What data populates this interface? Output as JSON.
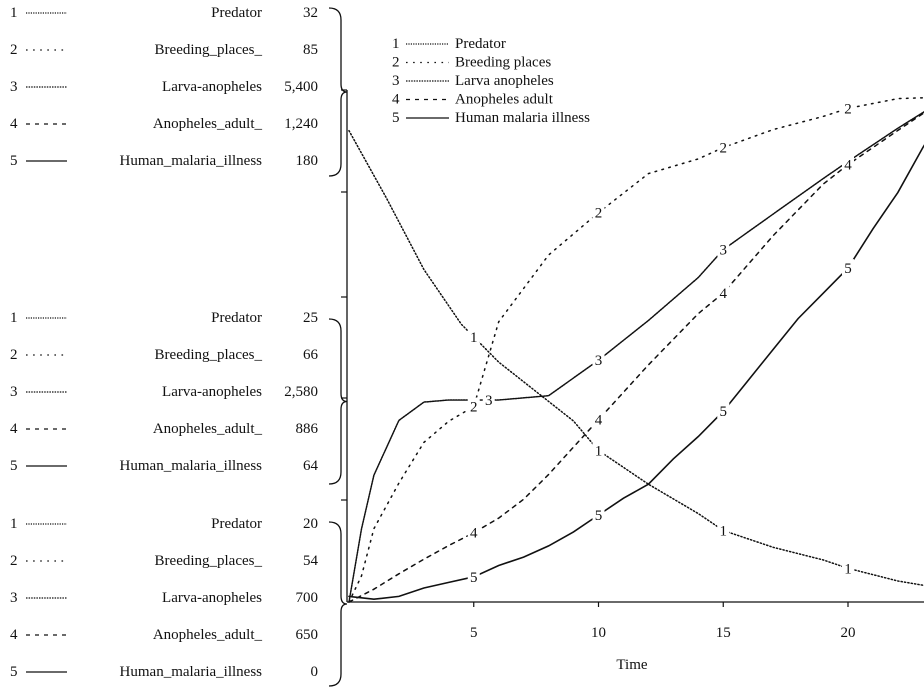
{
  "chart_data": {
    "type": "line",
    "xlabel": "Time",
    "x_ticks": [
      5,
      10,
      15,
      20
    ],
    "xlim": [
      0,
      24
    ],
    "legend": {
      "placement": "top-center",
      "entries": [
        {
          "num": "1",
          "name": "Predator"
        },
        {
          "num": "2",
          "name": "Breeding places"
        },
        {
          "num": "3",
          "name": "Larva anopheles"
        },
        {
          "num": "4",
          "name": "Anopheles adult"
        },
        {
          "num": "5",
          "name": "Human malaria illness"
        }
      ]
    },
    "scale_groups": [
      {
        "level": "top",
        "entries": [
          {
            "num": "1",
            "name": "Predator",
            "value": "32"
          },
          {
            "num": "2",
            "name": "Breeding_places_",
            "value": "85"
          },
          {
            "num": "3",
            "name": "Larva-anopheles",
            "value": "5,400"
          },
          {
            "num": "4",
            "name": "Anopheles_adult_",
            "value": "1,240"
          },
          {
            "num": "5",
            "name": "Human_malaria_illness",
            "value": "180"
          }
        ]
      },
      {
        "level": "middle",
        "entries": [
          {
            "num": "1",
            "name": "Predator",
            "value": "25"
          },
          {
            "num": "2",
            "name": "Breeding_places_",
            "value": "66"
          },
          {
            "num": "3",
            "name": "Larva-anopheles",
            "value": "2,580"
          },
          {
            "num": "4",
            "name": "Anopheles_adult_",
            "value": "886"
          },
          {
            "num": "5",
            "name": "Human_malaria_illness",
            "value": "64"
          }
        ]
      },
      {
        "level": "bottom",
        "entries": [
          {
            "num": "1",
            "name": "Predator",
            "value": "20"
          },
          {
            "num": "2",
            "name": "Breeding_places_",
            "value": "54"
          },
          {
            "num": "3",
            "name": "Larva-anopheles",
            "value": "700"
          },
          {
            "num": "4",
            "name": "Anopheles_adult_",
            "value": "650"
          },
          {
            "num": "5",
            "name": "Human_malaria_illness",
            "value": "0"
          }
        ]
      }
    ],
    "series": [
      {
        "num": "1",
        "name": "Predator",
        "style": "dotted",
        "x": [
          0,
          1.5,
          3,
          4.5,
          6,
          7.5,
          9,
          10,
          12,
          14,
          15,
          17,
          19,
          20,
          22,
          24
        ],
        "y": [
          31.2,
          29.6,
          27.9,
          26.6,
          25.7,
          25.0,
          24.3,
          23.6,
          22.8,
          22.1,
          21.7,
          21.3,
          21.0,
          20.8,
          20.5,
          20.3
        ]
      },
      {
        "num": "2",
        "name": "Breeding places",
        "style": "dotted-sparse",
        "x": [
          0,
          0.5,
          1,
          2,
          3,
          4,
          5,
          6,
          8,
          10,
          12,
          14,
          15,
          17,
          19,
          20,
          22,
          24
        ],
        "y": [
          54,
          55.6,
          58.5,
          61.3,
          63.8,
          65.1,
          66.0,
          71.2,
          75.3,
          77.9,
          80.3,
          81.2,
          81.9,
          83.0,
          83.8,
          84.3,
          84.9,
          85.0
        ]
      },
      {
        "num": "3",
        "name": "Larva anopheles",
        "style": "dotted-dense",
        "x": [
          0,
          0.5,
          1,
          2,
          3,
          4,
          5,
          6,
          8,
          10,
          12,
          14,
          15,
          17,
          19,
          20,
          22,
          24
        ],
        "y": [
          700,
          1380,
          1880,
          2390,
          2560,
          2580,
          2580,
          2580,
          2620,
          2950,
          3320,
          3720,
          3980,
          4310,
          4640,
          4800,
          5110,
          5400
        ]
      },
      {
        "num": "4",
        "name": "Anopheles adult",
        "style": "dashed",
        "x": [
          0,
          1,
          2,
          3,
          4,
          5,
          6,
          7,
          8,
          9,
          10,
          12,
          14,
          15,
          17,
          19,
          20,
          22,
          24
        ],
        "y": [
          650,
          665,
          683,
          700,
          716,
          731,
          748,
          770,
          799,
          831,
          863,
          927,
          987,
          1011,
          1078,
          1138,
          1161,
          1201,
          1240
        ]
      },
      {
        "num": "5",
        "name": "Human malaria illness",
        "style": "dash-long",
        "x": [
          0,
          1,
          2,
          3,
          4,
          5,
          6,
          7,
          8,
          9,
          10,
          11,
          12,
          13,
          14,
          15,
          16,
          17,
          18,
          19,
          20,
          21,
          22,
          23,
          24
        ],
        "y": [
          2,
          1,
          2,
          5,
          7,
          9,
          13,
          16,
          20,
          25,
          31,
          37,
          42,
          51,
          59,
          68,
          79,
          90,
          101,
          110,
          119,
          133,
          146,
          162,
          176
        ]
      }
    ],
    "marker_x": {
      "1": [
        5,
        10,
        15,
        20
      ],
      "2": [
        5,
        10,
        15,
        20
      ],
      "3": [
        5.6,
        10,
        15,
        20
      ],
      "4": [
        5,
        10,
        15,
        20
      ],
      "5": [
        5,
        10,
        15,
        20
      ]
    }
  }
}
